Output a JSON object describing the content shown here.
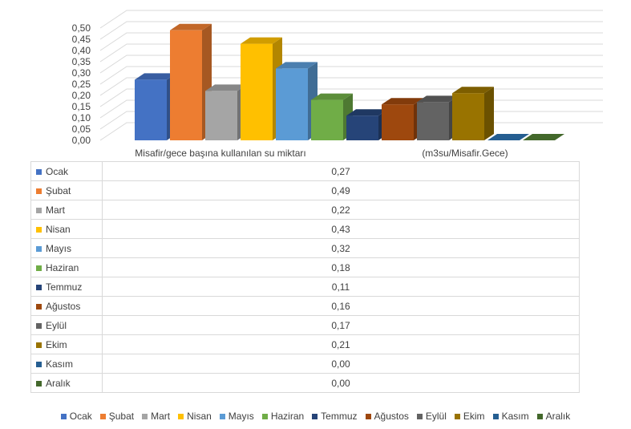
{
  "chart_data": {
    "type": "bar",
    "title": "",
    "categories": [
      "Misafir/gece başına kullanılan su miktarı",
      "(m3su/Misafir.Gece)"
    ],
    "series": [
      {
        "name": "Ocak",
        "color": "#4472C4",
        "value_label": "0,27",
        "values": [
          0.27,
          null
        ]
      },
      {
        "name": "Şubat",
        "color": "#ED7D31",
        "value_label": "0,49",
        "values": [
          0.49,
          null
        ]
      },
      {
        "name": "Mart",
        "color": "#A5A5A5",
        "value_label": "0,22",
        "values": [
          0.22,
          null
        ]
      },
      {
        "name": "Nisan",
        "color": "#FFC000",
        "value_label": "0,43",
        "values": [
          0.43,
          null
        ]
      },
      {
        "name": "Mayıs",
        "color": "#5B9BD5",
        "value_label": "0,32",
        "values": [
          0.32,
          null
        ]
      },
      {
        "name": "Haziran",
        "color": "#70AD47",
        "value_label": "0,18",
        "values": [
          0.18,
          null
        ]
      },
      {
        "name": "Temmuz",
        "color": "#264478",
        "value_label": "0,11",
        "values": [
          0.11,
          null
        ]
      },
      {
        "name": "Ağustos",
        "color": "#9E480E",
        "value_label": "0,16",
        "values": [
          0.16,
          null
        ]
      },
      {
        "name": "Eylül",
        "color": "#636363",
        "value_label": "0,17",
        "values": [
          0.17,
          null
        ]
      },
      {
        "name": "Ekim",
        "color": "#997300",
        "value_label": "0,21",
        "values": [
          0.21,
          null
        ]
      },
      {
        "name": "Kasım",
        "color": "#255E91",
        "value_label": "0,00",
        "values": [
          0.0,
          null
        ]
      },
      {
        "name": "Aralık",
        "color": "#43682B",
        "value_label": "0,00",
        "values": [
          0.0,
          null
        ]
      }
    ],
    "ylim": [
      0,
      0.5
    ],
    "yticks": [
      0.0,
      0.05,
      0.1,
      0.15,
      0.2,
      0.25,
      0.3,
      0.35,
      0.4,
      0.45,
      0.5
    ],
    "ytick_labels": [
      "0,00",
      "0,05",
      "0,10",
      "0,15",
      "0,20",
      "0,25",
      "0,30",
      "0,35",
      "0,40",
      "0,45",
      "0,50"
    ],
    "grid": true,
    "three_d": true,
    "data_table": true,
    "legend_position": "bottom"
  }
}
